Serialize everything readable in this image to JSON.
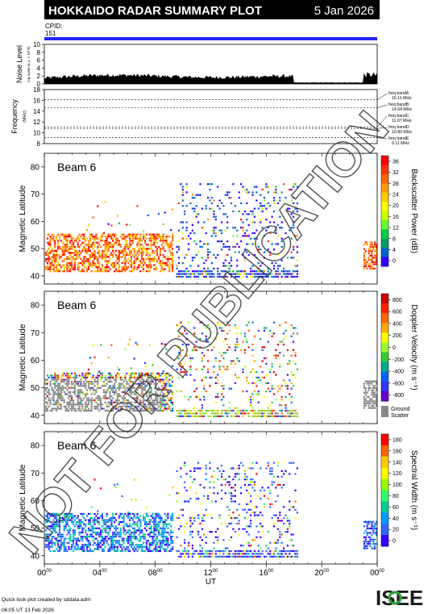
{
  "header": {
    "title": "HOKKAIDO RADAR SUMMARY PLOT",
    "date": "5 Jan 2026",
    "cpid_label": "CPID:",
    "cpid_value": "151"
  },
  "watermark": "NOT FOR PUBLICATION",
  "footer": {
    "line1": "Quick look plot created by sddata.adm",
    "line2": "06:05 UT 13 Feb 2026",
    "logo": "ISEE"
  },
  "x_axis": {
    "label": "UT",
    "ticks": [
      {
        "hh": "00",
        "mm": "00",
        "hour": 0
      },
      {
        "hh": "04",
        "mm": "00",
        "hour": 4
      },
      {
        "hh": "08",
        "mm": "00",
        "hour": 8
      },
      {
        "hh": "12",
        "mm": "00",
        "hour": 12
      },
      {
        "hh": "16",
        "mm": "00",
        "hour": 16
      },
      {
        "hh": "20",
        "mm": "00",
        "hour": 20
      },
      {
        "hh": "00",
        "mm": "00",
        "hour": 24
      }
    ]
  },
  "noise_panel": {
    "ylabel": "Noise Level",
    "sublabel": "log scale (a.u. × 10^n)",
    "yticks": [
      "10",
      "8",
      "6",
      "4",
      "2",
      "0"
    ],
    "ylim": [
      0,
      10
    ]
  },
  "freq_panel": {
    "ylabel": "Frequency",
    "unit": "(MHz)",
    "yticks": [
      "18",
      "16",
      "14",
      "12",
      "10",
      "8"
    ],
    "ylim": [
      8,
      18
    ],
    "bands": [
      {
        "name": "freq bandA",
        "value": "16.11 MHz",
        "mhz": 16.11
      },
      {
        "name": "freq bandB",
        "value": "14.64 MHz",
        "mhz": 14.64
      },
      {
        "name": "freq bandC",
        "value": "11.07 MHz",
        "mhz": 11.07
      },
      {
        "name": "freq bandD",
        "value": "10.80 MHz",
        "mhz": 10.8
      },
      {
        "name": "freq bandE",
        "value": "9.11 MHz",
        "mhz": 9.11
      }
    ]
  },
  "chart_data": [
    {
      "type": "heatmap",
      "label": "Beam 6",
      "ylabel": "Magnetic Latitude",
      "yticks": [
        "80",
        "70",
        "60",
        "50",
        "40"
      ],
      "ylim": [
        37,
        85
      ],
      "xlim": [
        0,
        24
      ],
      "colorbar_label": "Backscatter Power (dB)",
      "colorbar_ticks": [
        "36",
        "32",
        "28",
        "24",
        "20",
        "16",
        "12",
        "8",
        "4",
        "0"
      ],
      "colorbar_range": [
        0,
        38
      ]
    },
    {
      "type": "heatmap",
      "label": "Beam 6",
      "ylabel": "Magnetic Latitude",
      "yticks": [
        "80",
        "70",
        "60",
        "50",
        "40"
      ],
      "ylim": [
        37,
        85
      ],
      "xlim": [
        0,
        24
      ],
      "colorbar_label": "Doppler Velocity (m s⁻¹)",
      "colorbar_ticks": [
        "800",
        "600",
        "400",
        "200",
        "0",
        "-200",
        "-400",
        "-600",
        "-800"
      ],
      "colorbar_range": [
        -900,
        900
      ],
      "ground_label": "Ground",
      "ground_label2": "Scatter"
    },
    {
      "type": "heatmap",
      "label": "Beam 6",
      "ylabel": "Magnetic Latitude",
      "yticks": [
        "80",
        "70",
        "60",
        "50",
        "40"
      ],
      "ylim": [
        37,
        85
      ],
      "xlim": [
        0,
        24
      ],
      "colorbar_label": "Spectral Width (m s⁻¹)",
      "colorbar_ticks": [
        "180",
        "160",
        "140",
        "120",
        "100",
        "80",
        "60",
        "40",
        "20",
        "0"
      ],
      "colorbar_range": [
        0,
        190
      ]
    }
  ]
}
